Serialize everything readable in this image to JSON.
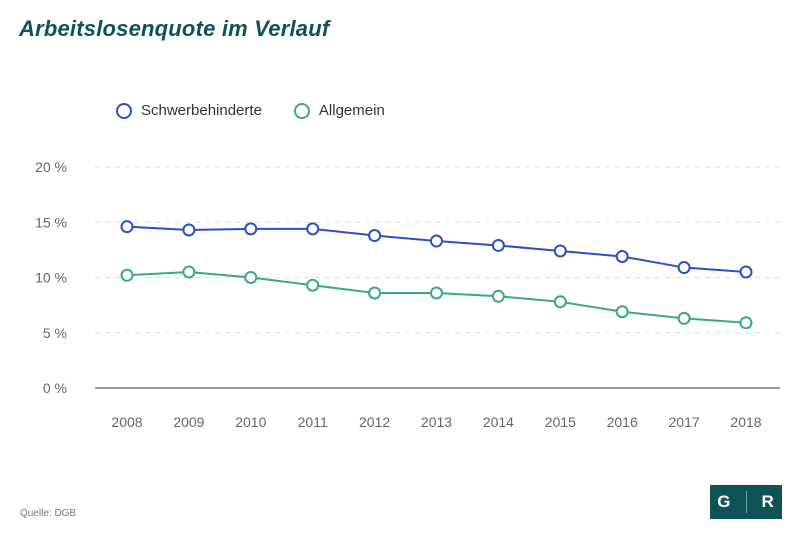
{
  "title": "Arbeitslosenquote im Verlauf",
  "source": "Quelle: DGB",
  "logo": "GR",
  "colors": {
    "series1": "#2e4fc4",
    "series2": "#3aa78b",
    "title": "#0f5257"
  },
  "chart_data": {
    "type": "line",
    "x": [
      "2008",
      "2009",
      "2010",
      "2011",
      "2012",
      "2013",
      "2014",
      "2015",
      "2016",
      "2017",
      "2018"
    ],
    "series": [
      {
        "name": "Schwerbehinderte",
        "values": [
          14.6,
          14.3,
          14.4,
          14.4,
          13.8,
          13.3,
          12.9,
          12.4,
          11.9,
          10.9,
          10.5
        ]
      },
      {
        "name": "Allgemein",
        "values": [
          10.2,
          10.5,
          10.0,
          9.3,
          8.6,
          8.6,
          8.3,
          7.8,
          6.9,
          6.3,
          5.9
        ]
      }
    ],
    "yticks": [
      "20 %",
      "15 %",
      "10 %",
      "5 %",
      "0 %"
    ],
    "ytick_values": [
      20,
      15,
      10,
      5,
      0
    ],
    "ylim": [
      0,
      20
    ],
    "legend_position": "top-left",
    "grid": true
  }
}
